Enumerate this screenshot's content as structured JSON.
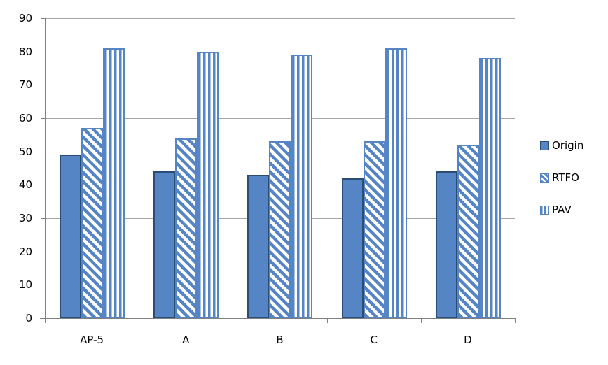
{
  "chart_data": {
    "type": "bar",
    "categories": [
      "AP-5",
      "A",
      "B",
      "C",
      "D"
    ],
    "series": [
      {
        "name": "Origin",
        "style": "solid",
        "values": [
          49,
          44,
          43,
          42,
          44
        ]
      },
      {
        "name": "RTFO",
        "style": "diagonal-hatch",
        "values": [
          57,
          54,
          53,
          53,
          52
        ]
      },
      {
        "name": "PAV",
        "style": "vertical-stripes",
        "values": [
          81,
          80,
          79,
          81,
          78
        ]
      }
    ],
    "ylim": [
      0,
      90
    ],
    "ytick_step": 10,
    "yticks": [
      0,
      10,
      20,
      30,
      40,
      50,
      60,
      70,
      80,
      90
    ],
    "xlabel": "",
    "ylabel": "",
    "grid": "horizontal",
    "legend_position": "right",
    "colors": {
      "bar_fill": "#5585C4",
      "bar_border_dark": "#2A4D75",
      "gridline": "#A6A6A6",
      "axis_line": "#808080",
      "text": "#000000",
      "background": "#FFFFFF"
    }
  }
}
